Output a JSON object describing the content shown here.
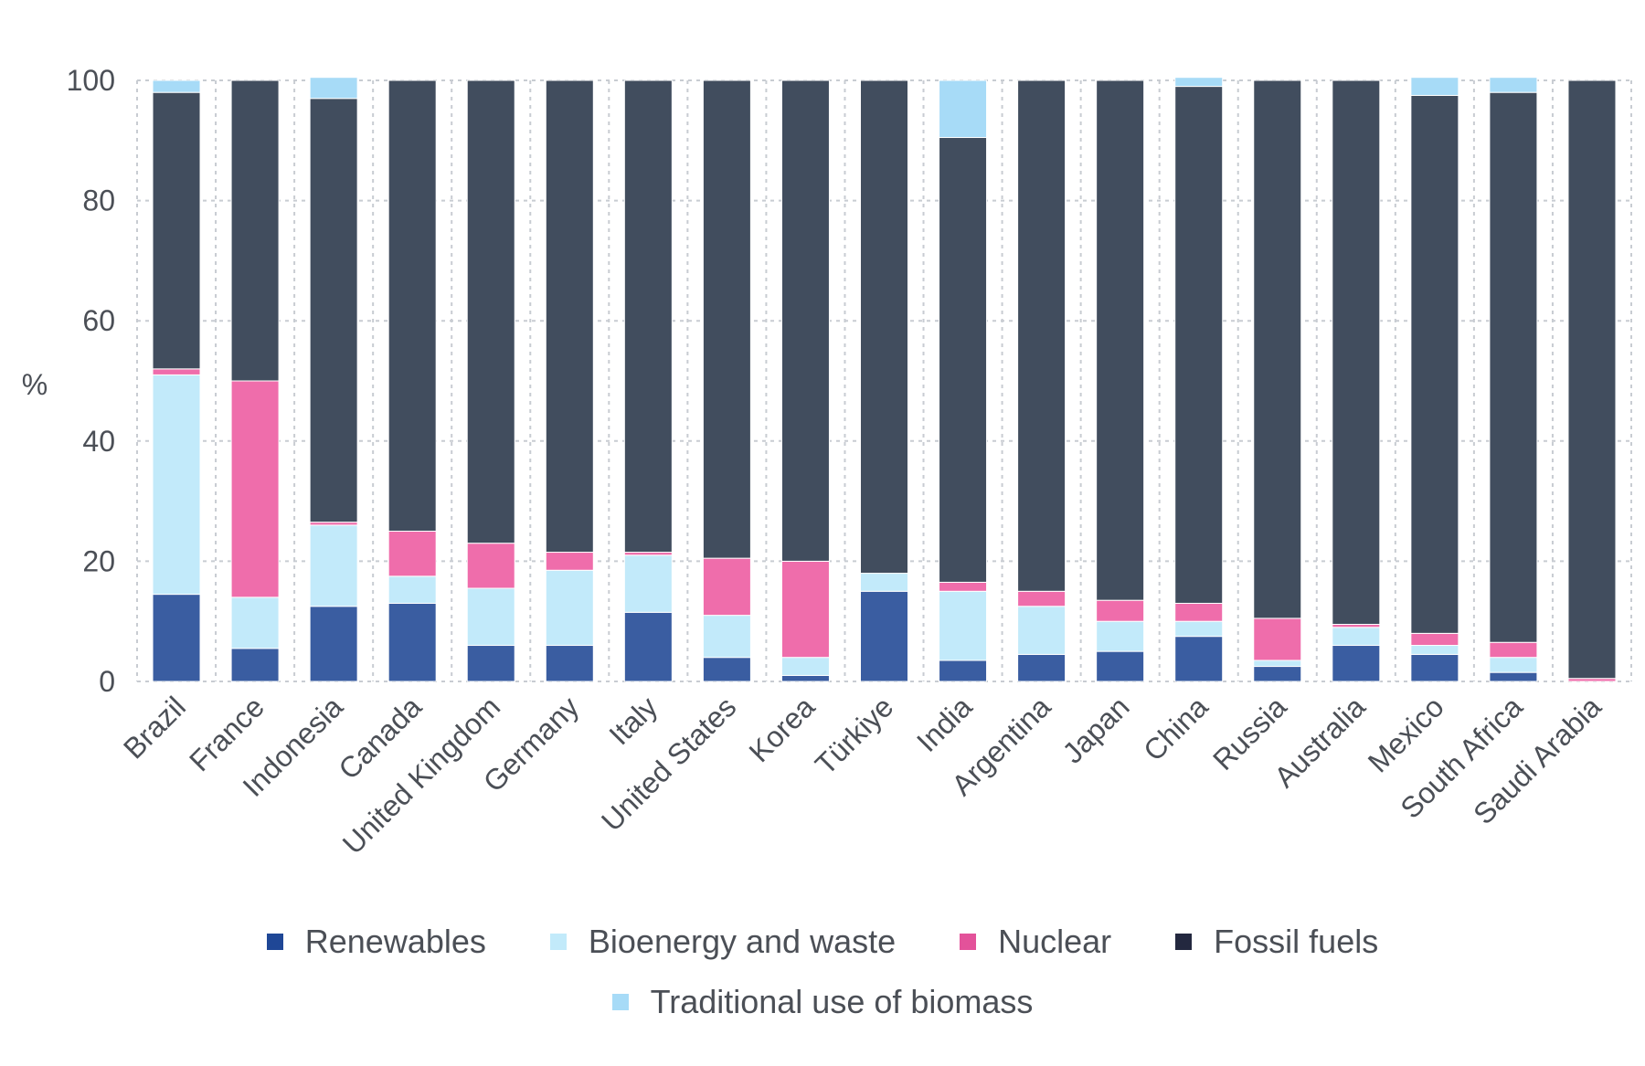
{
  "chart_data": {
    "type": "bar",
    "stacked": true,
    "title": "",
    "xlabel": "",
    "ylabel": "%",
    "ylim": [
      0,
      100
    ],
    "yticks": [
      0,
      20,
      40,
      60,
      80,
      100
    ],
    "grid": true,
    "legend_position": "bottom",
    "categories": [
      "Brazil",
      "France",
      "Indonesia",
      "Canada",
      "United Kingdom",
      "Germany",
      "Italy",
      "United States",
      "Korea",
      "Türkiye",
      "India",
      "Argentina",
      "Japan",
      "China",
      "Russia",
      "Australia",
      "Mexico",
      "South Africa",
      "Saudi Arabia"
    ],
    "series": [
      {
        "name": "Renewables",
        "color": "#3a5da1",
        "values": [
          14.5,
          5.5,
          12.5,
          13,
          6,
          6,
          11.5,
          4,
          1,
          15,
          3.5,
          4.5,
          5,
          7.5,
          2.5,
          6,
          4.5,
          1.5,
          0
        ]
      },
      {
        "name": "Bioenergy and waste",
        "color": "#c2eafa",
        "values": [
          36.5,
          8.5,
          13.5,
          4.5,
          9.5,
          12.5,
          9.5,
          7,
          3,
          3,
          11.5,
          8,
          5,
          2.5,
          1,
          3,
          1.5,
          2.5,
          0
        ]
      },
      {
        "name": "Nuclear",
        "color": "#ef6dab",
        "values": [
          1,
          36,
          0.5,
          7.5,
          7.5,
          3,
          0.5,
          9.5,
          16,
          0,
          1.5,
          2.5,
          3.5,
          3,
          7,
          0.5,
          2,
          2.5,
          0.5
        ]
      },
      {
        "name": "Fossil fuels",
        "color": "#414d5e",
        "values": [
          46,
          50,
          70.5,
          75,
          77,
          78.5,
          78.5,
          79.5,
          80,
          82,
          74,
          85,
          86.5,
          86,
          89.5,
          90.5,
          89.5,
          91.5,
          99.5
        ]
      },
      {
        "name": "Traditional use of biomass",
        "color": "#a7dbf7",
        "values": [
          2,
          0,
          3.5,
          0,
          0,
          0,
          0,
          0,
          0,
          0,
          9.5,
          0,
          0,
          1.5,
          0,
          0,
          3,
          2.5,
          0
        ]
      }
    ]
  },
  "legend": {
    "row1": [
      {
        "label": "Renewables",
        "color": "#1f4796"
      },
      {
        "label": "Bioenergy and waste",
        "color": "#c2eafa"
      },
      {
        "label": "Nuclear",
        "color": "#e3529a"
      },
      {
        "label": "Fossil fuels",
        "color": "#23283f"
      }
    ],
    "row2": [
      {
        "label": "Traditional use of biomass",
        "color": "#a7dbf7"
      }
    ]
  }
}
